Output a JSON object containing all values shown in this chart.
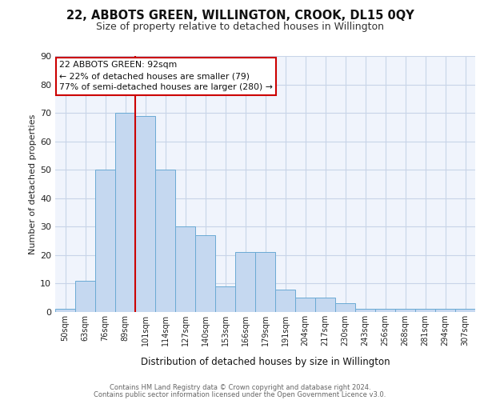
{
  "title1": "22, ABBOTS GREEN, WILLINGTON, CROOK, DL15 0QY",
  "title2": "Size of property relative to detached houses in Willington",
  "xlabel": "Distribution of detached houses by size in Willington",
  "ylabel": "Number of detached properties",
  "bar_labels": [
    "50sqm",
    "63sqm",
    "76sqm",
    "89sqm",
    "101sqm",
    "114sqm",
    "127sqm",
    "140sqm",
    "153sqm",
    "166sqm",
    "179sqm",
    "191sqm",
    "204sqm",
    "217sqm",
    "230sqm",
    "243sqm",
    "256sqm",
    "268sqm",
    "281sqm",
    "294sqm",
    "307sqm"
  ],
  "bar_values": [
    1,
    11,
    50,
    70,
    69,
    50,
    30,
    27,
    9,
    21,
    21,
    8,
    5,
    5,
    3,
    1,
    1,
    1,
    1,
    1,
    1
  ],
  "bar_color": "#c5d8f0",
  "bar_edge_color": "#6aaad4",
  "annotation_line1": "22 ABBOTS GREEN: 92sqm",
  "annotation_line2": "← 22% of detached houses are smaller (79)",
  "annotation_line3": "77% of semi-detached houses are larger (280) →",
  "annotation_box_color": "#ffffff",
  "annotation_border_color": "#cc0000",
  "vline_color": "#cc0000",
  "vline_x": 3.5,
  "ylim": [
    0,
    90
  ],
  "yticks": [
    0,
    10,
    20,
    30,
    40,
    50,
    60,
    70,
    80,
    90
  ],
  "footer1": "Contains HM Land Registry data © Crown copyright and database right 2024.",
  "footer2": "Contains public sector information licensed under the Open Government Licence v3.0.",
  "bg_color": "#f0f4fc",
  "grid_color": "#c8d4e8",
  "title1_fontsize": 10.5,
  "title2_fontsize": 9
}
